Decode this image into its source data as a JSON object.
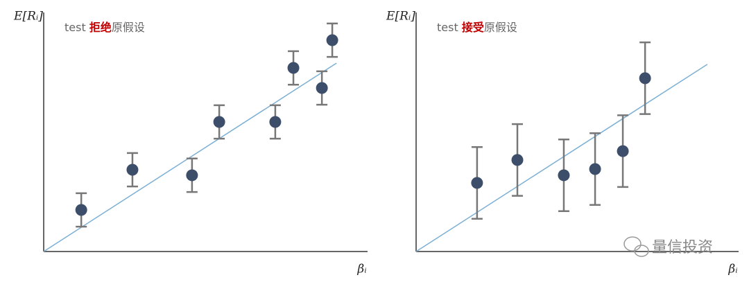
{
  "chart_data": [
    {
      "type": "scatter",
      "title_parts": [
        "test ",
        "拒绝",
        "原假设"
      ],
      "ylabel": "E[Rᵢ]",
      "xlabel": "βᵢ",
      "xlim": [
        0,
        100
      ],
      "ylim": [
        0,
        100
      ],
      "color": "#3d4e6a",
      "error_color": "#777777",
      "fit_color": "#7bafd4",
      "x": [
        11.6,
        27.4,
        45.8,
        54.2,
        71.5,
        77.1,
        85.9,
        89.1
      ],
      "values": [
        17.4,
        34.2,
        31.9,
        54.2,
        54.2,
        76.8,
        68.4,
        88.4
      ],
      "errors": [
        7,
        7,
        7,
        7,
        7,
        7,
        7,
        7
      ],
      "fit": {
        "x": [
          0,
          90.4
        ],
        "y": [
          0,
          78.8
        ]
      }
    },
    {
      "type": "scatter",
      "title_parts": [
        "test ",
        "接受",
        "原假设"
      ],
      "ylabel": "E[Rᵢ]",
      "xlabel": "βᵢ",
      "xlim": [
        0,
        100
      ],
      "ylim": [
        0,
        100
      ],
      "color": "#3d4e6a",
      "error_color": "#777777",
      "fit_color": "#7bafd4",
      "x": [
        18.9,
        31.4,
        45.8,
        55.5,
        64.1,
        71.0
      ],
      "values": [
        28.7,
        38.3,
        31.9,
        34.5,
        42.0,
        72.5
      ],
      "errors": [
        15,
        15,
        15,
        15,
        15,
        15
      ],
      "fit": {
        "x": [
          0,
          90.3
        ],
        "y": [
          0,
          78.3
        ]
      }
    }
  ],
  "watermark": "量信投资"
}
